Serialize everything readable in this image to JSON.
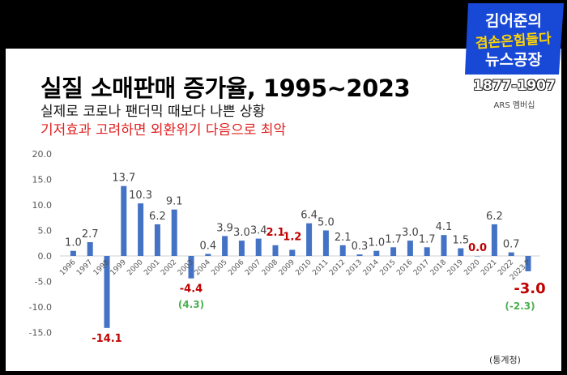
{
  "header": {
    "title": "실질 소매판매 증가율, 1995~2023",
    "subtitle1": "실제로 코로나 팬더믹 때보다 나쁜 상황",
    "subtitle2": "기저효과 고려하면 외환위기 다음으로 최악"
  },
  "logo": {
    "line1": "김어준의",
    "line2": "겸손은힘들다",
    "line3": "뉴스공장",
    "range": "1877-1907",
    "ars": "ARS 멤버십",
    "bg_color": "#1848d6"
  },
  "source": "(통계청)",
  "colors": {
    "bar": "#4472c4",
    "label": "#444444",
    "highlight": "#c00000",
    "adjusted": "#4caf50"
  },
  "chart_data": {
    "type": "bar",
    "categories": [
      "1996",
      "1997",
      "1998",
      "1999",
      "2000",
      "2001",
      "2002",
      "2003",
      "2004",
      "2005",
      "2006",
      "2007",
      "2008",
      "2009",
      "2010",
      "2011",
      "2012",
      "2013",
      "2014",
      "2015",
      "2016",
      "2017",
      "2018",
      "2019",
      "2020",
      "2021",
      "2022",
      "2023 P"
    ],
    "values": [
      1.0,
      2.7,
      -14.1,
      13.7,
      10.3,
      6.2,
      9.1,
      -4.4,
      0.4,
      3.9,
      3.0,
      3.4,
      2.1,
      1.2,
      6.4,
      5.0,
      2.1,
      0.3,
      1.0,
      1.7,
      3.0,
      1.7,
      4.1,
      1.5,
      0.0,
      6.2,
      0.7,
      -3.0
    ],
    "value_labels": [
      "1.0",
      "2.7",
      "-14.1",
      "13.7",
      "10.3",
      "6.2",
      "9.1",
      "-4.4",
      "0.4",
      "3.9",
      "3.0",
      "3.4",
      "2.1",
      "1.2",
      "6.4",
      "5.0",
      "2.1",
      "0.3",
      "1.0",
      "1.7",
      "3.0",
      "1.7",
      "4.1",
      "1.5",
      "0.0",
      "6.2",
      "0.7",
      "-3.0"
    ],
    "highlight_labels": [
      "1998",
      "2003",
      "2008",
      "2009",
      "2020",
      "2023 P"
    ],
    "annotations": [
      {
        "category": "2003",
        "text": "(4.3)"
      },
      {
        "category": "2023 P",
        "text": "(-2.3)"
      }
    ],
    "yticks": [
      "20.0",
      "15.0",
      "10.0",
      "5.0",
      "0.0",
      "-5.0",
      "-10.0",
      "-15.0"
    ],
    "ylim": [
      -15,
      20
    ],
    "grid": false,
    "legend": "none"
  }
}
